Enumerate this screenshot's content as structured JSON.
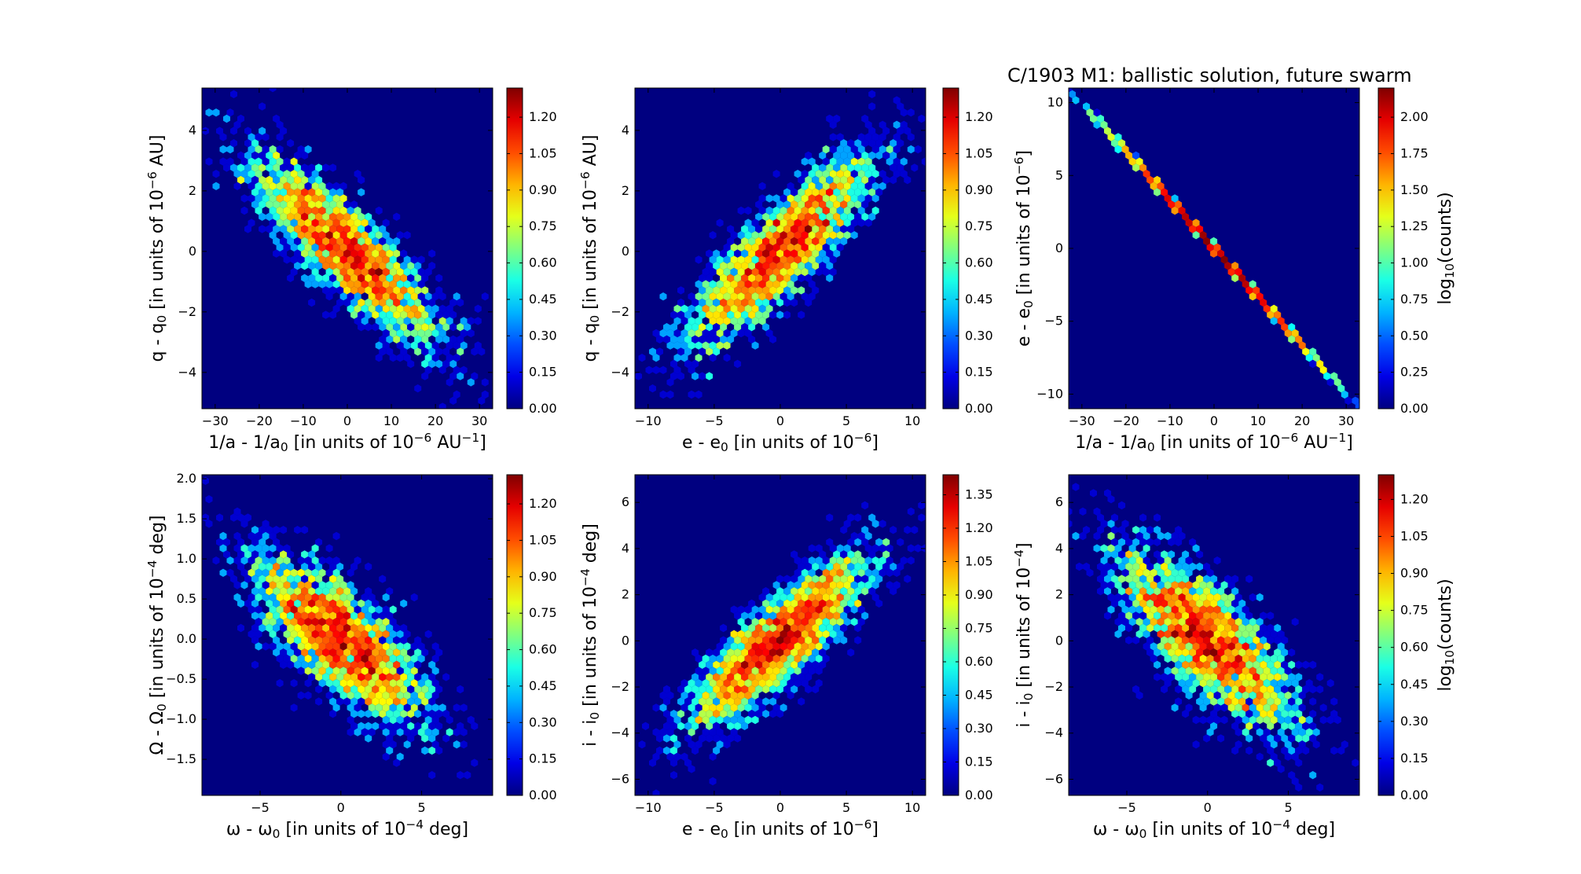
{
  "figure_title": "C/1903 M1:  ballistic solution, future swarm",
  "colorbar_label": "log10(counts)",
  "chart_data": [
    {
      "type": "heatmap",
      "kind": "hexbin",
      "xlabel": "1/a - 1/a0 [in units of 10^-6 AU^-1]",
      "ylabel": "q - q0 [in units of 10^-6 AU]",
      "xlim": [
        -33,
        33
      ],
      "ylim": [
        -5.2,
        5.4
      ],
      "xticks": [
        -30,
        -20,
        -10,
        0,
        10,
        20,
        30
      ],
      "yticks": [
        -4,
        -2,
        0,
        2,
        4
      ],
      "cbar_ticks": [
        "0.00",
        "0.15",
        "0.30",
        "0.45",
        "0.60",
        "0.75",
        "0.90",
        "1.05",
        "1.20"
      ],
      "cbar_max": 1.32,
      "cbar_label_shown": false,
      "dist": {
        "type": "gauss",
        "sx": 11,
        "sy": 1.6,
        "rho": -0.85,
        "n": 2600,
        "seed": 11
      }
    },
    {
      "type": "heatmap",
      "kind": "hexbin",
      "xlabel": "e - e0 [in units of 10^-6]",
      "ylabel": "q - q0 [in units of 10^-6 AU]",
      "xlim": [
        -11,
        11
      ],
      "ylim": [
        -5.2,
        5.4
      ],
      "xticks": [
        -10,
        -5,
        0,
        5,
        10
      ],
      "yticks": [
        -4,
        -2,
        0,
        2,
        4
      ],
      "cbar_ticks": [
        "0.00",
        "0.15",
        "0.30",
        "0.45",
        "0.60",
        "0.75",
        "0.90",
        "1.05",
        "1.20"
      ],
      "cbar_max": 1.32,
      "cbar_label_shown": false,
      "dist": {
        "type": "gauss",
        "sx": 3.6,
        "sy": 1.6,
        "rho": 0.85,
        "n": 2600,
        "seed": 23
      }
    },
    {
      "type": "heatmap",
      "kind": "hexbin",
      "xlabel": "1/a - 1/a0 [in units of 10^-6 AU^-1]",
      "ylabel": "e - e0 [in units of 10^-6]",
      "xlim": [
        -33,
        33
      ],
      "ylim": [
        -11,
        11
      ],
      "xticks": [
        -30,
        -20,
        -10,
        0,
        10,
        20,
        30
      ],
      "yticks": [
        -10,
        -5,
        0,
        5,
        10
      ],
      "cbar_ticks": [
        "0.00",
        "0.25",
        "0.50",
        "0.75",
        "1.00",
        "1.25",
        "1.50",
        "1.75",
        "2.00"
      ],
      "cbar_max": 2.2,
      "cbar_label_shown": true,
      "dist": {
        "type": "line",
        "sx": 11,
        "slope": -0.333,
        "n": 5000,
        "seed": 37
      }
    },
    {
      "type": "heatmap",
      "kind": "hexbin",
      "xlabel": "ω - ω0 [in units of 10^-4 deg]",
      "ylabel": "Ω - Ω0 [in units of 10^-4 deg]",
      "xlim": [
        -8.6,
        9.4
      ],
      "ylim": [
        -1.95,
        2.05
      ],
      "xticks": [
        -5,
        0,
        5
      ],
      "yticks": [
        -1.5,
        -1.0,
        -0.5,
        0.0,
        0.5,
        1.0,
        1.5,
        2.0
      ],
      "ytick_labels": [
        "−1.5",
        "−1.0",
        "−0.5",
        "0.0",
        "0.5",
        "1.0",
        "1.5",
        "2.0"
      ],
      "cbar_ticks": [
        "0.00",
        "0.15",
        "0.30",
        "0.45",
        "0.60",
        "0.75",
        "0.90",
        "1.05",
        "1.20"
      ],
      "cbar_max": 1.32,
      "cbar_label_shown": false,
      "dist": {
        "type": "gauss",
        "sx": 2.8,
        "sy": 0.55,
        "rho": -0.75,
        "n": 2600,
        "seed": 41
      }
    },
    {
      "type": "heatmap",
      "kind": "hexbin",
      "xlabel": "e - e0 [in units of 10^-6]",
      "ylabel": "i - i0 [in units of 10^-4 deg]",
      "xlim": [
        -11,
        11
      ],
      "ylim": [
        -6.7,
        7.2
      ],
      "xticks": [
        -10,
        -5,
        0,
        5,
        10
      ],
      "yticks": [
        -6,
        -4,
        -2,
        0,
        2,
        4,
        6
      ],
      "cbar_ticks": [
        "0.00",
        "0.15",
        "0.30",
        "0.45",
        "0.60",
        "0.75",
        "0.90",
        "1.05",
        "1.20",
        "1.35"
      ],
      "cbar_max": 1.44,
      "cbar_label_shown": false,
      "dist": {
        "type": "gauss",
        "sx": 3.6,
        "sy": 2.0,
        "rho": 0.85,
        "n": 2600,
        "seed": 53
      }
    },
    {
      "type": "heatmap",
      "kind": "hexbin",
      "xlabel": "ω - ω0 [in units of 10^-4 deg]",
      "ylabel": "i - i0 [in units of 10^-4]",
      "xlim": [
        -8.6,
        9.4
      ],
      "ylim": [
        -6.7,
        7.2
      ],
      "xticks": [
        -5,
        0,
        5
      ],
      "yticks": [
        -6,
        -4,
        -2,
        0,
        2,
        4,
        6
      ],
      "cbar_ticks": [
        "0.00",
        "0.15",
        "0.30",
        "0.45",
        "0.60",
        "0.75",
        "0.90",
        "1.05",
        "1.20"
      ],
      "cbar_max": 1.3,
      "cbar_label_shown": true,
      "dist": {
        "type": "gauss",
        "sx": 2.8,
        "sy": 2.0,
        "rho": -0.75,
        "n": 2600,
        "seed": 67
      }
    }
  ]
}
